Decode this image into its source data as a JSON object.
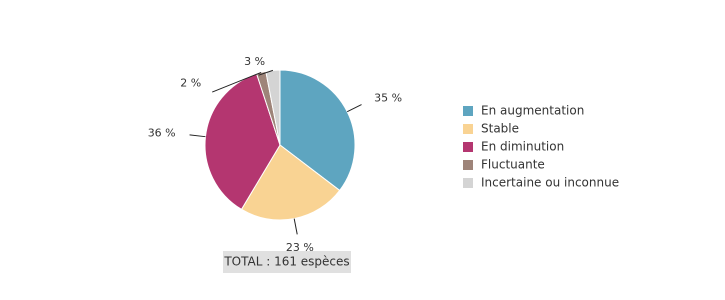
{
  "chart_data": {
    "type": "pie",
    "categories": [
      "En augmentation",
      "Stable",
      "En diminution",
      "Fluctuante",
      "Incertaine ou inconnue"
    ],
    "values": [
      35,
      23,
      36,
      2,
      3
    ],
    "value_labels": [
      "35 %",
      "23 %",
      "36 %",
      "2 %",
      "3 %"
    ],
    "colors": [
      "#5ea5c0",
      "#f9d393",
      "#b43670",
      "#9e8479",
      "#d4d4d4"
    ],
    "total_label": "TOTAL : 161 espèces",
    "legend": "right"
  }
}
